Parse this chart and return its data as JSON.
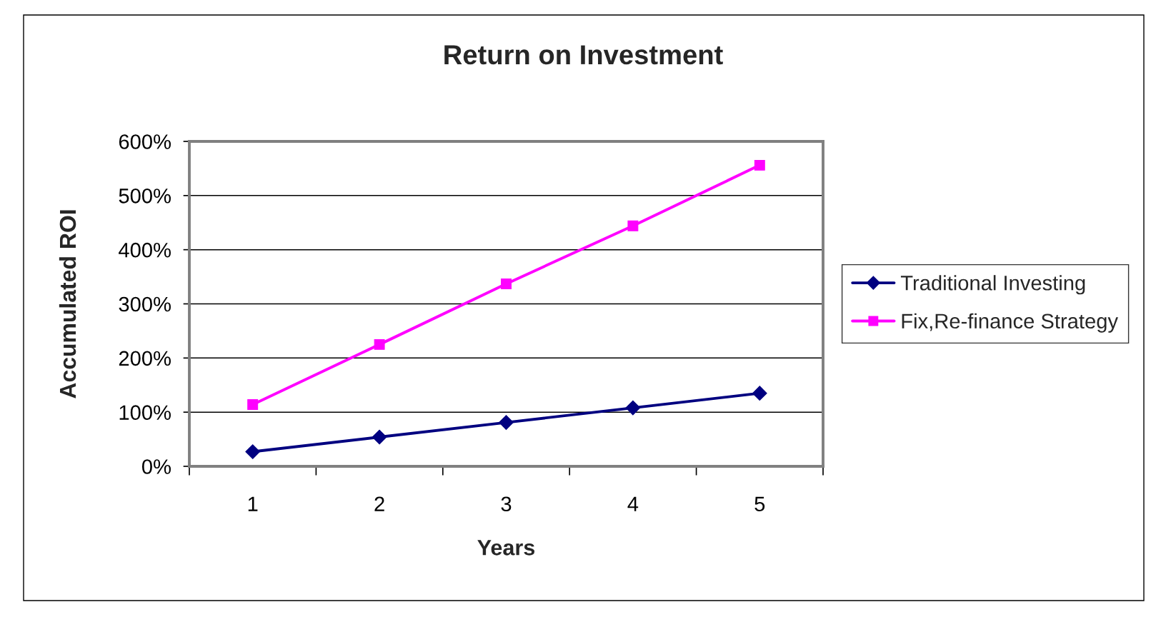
{
  "chart_data": {
    "type": "line",
    "title": "Return on Investment",
    "xlabel": "Years",
    "ylabel": "Accumulated ROI",
    "categories": [
      "1",
      "2",
      "3",
      "4",
      "5"
    ],
    "series": [
      {
        "name": "Traditional Investing",
        "color": "#000080",
        "marker": "diamond",
        "values": [
          27,
          54,
          81,
          108,
          135
        ]
      },
      {
        "name": "Fix,Re-finance Strategy",
        "color": "#ff00ff",
        "marker": "square",
        "values": [
          114,
          225,
          337,
          444,
          556
        ]
      }
    ],
    "ylim": [
      0,
      600
    ],
    "yticks": [
      {
        "value": 0,
        "label": "0%"
      },
      {
        "value": 100,
        "label": "100%"
      },
      {
        "value": 200,
        "label": "200%"
      },
      {
        "value": 300,
        "label": "300%"
      },
      {
        "value": 400,
        "label": "400%"
      },
      {
        "value": 500,
        "label": "500%"
      },
      {
        "value": 600,
        "label": "600%"
      }
    ],
    "grid": "y",
    "legend": "right",
    "line_style": "solid"
  }
}
